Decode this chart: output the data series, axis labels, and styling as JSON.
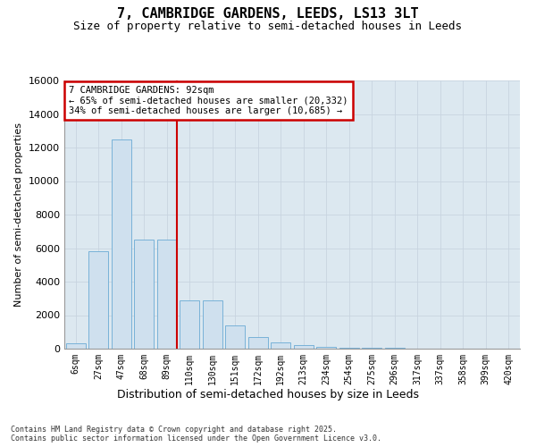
{
  "title_line1": "7, CAMBRIDGE GARDENS, LEEDS, LS13 3LT",
  "title_line2": "Size of property relative to semi-detached houses in Leeds",
  "xlabel": "Distribution of semi-detached houses by size in Leeds",
  "ylabel": "Number of semi-detached properties",
  "footnote": "Contains HM Land Registry data © Crown copyright and database right 2025.\nContains public sector information licensed under the Open Government Licence v3.0.",
  "bar_color": "#cfe0ee",
  "bar_edge_color": "#6aaad4",
  "annotation_box_color": "#ffffff",
  "annotation_box_edge": "#cc0000",
  "vline_color": "#cc0000",
  "property_bin_index": 4,
  "annotation_text": "7 CAMBRIDGE GARDENS: 92sqm\n← 65% of semi-detached houses are smaller (20,332)\n34% of semi-detached houses are larger (10,685) →",
  "categories": [
    "6sqm",
    "27sqm",
    "47sqm",
    "68sqm",
    "89sqm",
    "110sqm",
    "130sqm",
    "151sqm",
    "172sqm",
    "192sqm",
    "213sqm",
    "234sqm",
    "254sqm",
    "275sqm",
    "296sqm",
    "317sqm",
    "337sqm",
    "358sqm",
    "399sqm",
    "420sqm"
  ],
  "bar_heights": [
    300,
    5800,
    12500,
    6500,
    6500,
    2900,
    2900,
    1400,
    700,
    400,
    230,
    130,
    80,
    50,
    30,
    10,
    5,
    3,
    2,
    1
  ],
  "ylim": [
    0,
    16000
  ],
  "yticks": [
    0,
    2000,
    4000,
    6000,
    8000,
    10000,
    12000,
    14000,
    16000
  ],
  "grid_color": "#c8d4e0",
  "background_color": "#dce8f0"
}
